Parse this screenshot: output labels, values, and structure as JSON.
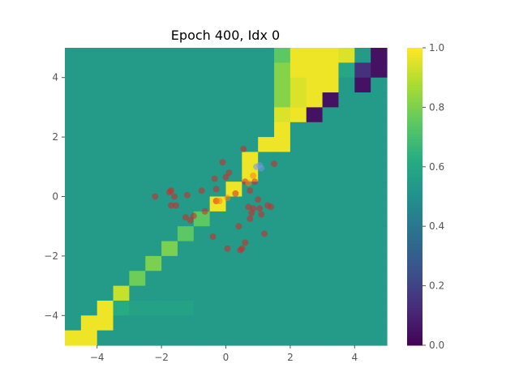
{
  "chart_data": {
    "type": "heatmap",
    "title": "Epoch 400, Idx 0",
    "xlabel": "",
    "ylabel": "",
    "xlim": [
      -5,
      5
    ],
    "ylim": [
      -5,
      5
    ],
    "grid": false,
    "x_ticks": [
      -4,
      -2,
      0,
      2,
      4
    ],
    "y_ticks": [
      -4,
      -2,
      0,
      2,
      4
    ],
    "colormap": "viridis",
    "colorbar": {
      "min": 0.0,
      "max": 1.0,
      "ticks": [
        0.0,
        0.2,
        0.4,
        0.6,
        0.8,
        1.0
      ],
      "tick_labels": [
        "0.0",
        "0.2",
        "0.4",
        "0.6",
        "0.8",
        "1.0"
      ]
    },
    "grid_size": 20,
    "grid_note_rows_top_to_bottom": "values row 0 = y in [4.5,5], row 19 = y in [-5,-4.5]; col 0 = x in [-5,-4.5]",
    "values": [
      [
        0.55,
        0.55,
        0.55,
        0.55,
        0.55,
        0.55,
        0.55,
        0.55,
        0.55,
        0.55,
        0.55,
        0.55,
        0.55,
        0.75,
        0.98,
        0.98,
        0.98,
        0.95,
        0.55,
        0.05
      ],
      [
        0.55,
        0.55,
        0.55,
        0.55,
        0.55,
        0.55,
        0.55,
        0.55,
        0.55,
        0.55,
        0.55,
        0.55,
        0.55,
        0.82,
        0.98,
        0.98,
        0.98,
        0.6,
        0.15,
        0.05
      ],
      [
        0.55,
        0.55,
        0.55,
        0.55,
        0.55,
        0.55,
        0.55,
        0.55,
        0.55,
        0.55,
        0.55,
        0.55,
        0.55,
        0.82,
        0.95,
        0.98,
        0.98,
        0.55,
        0.05,
        0.55
      ],
      [
        0.55,
        0.55,
        0.55,
        0.55,
        0.55,
        0.55,
        0.55,
        0.55,
        0.55,
        0.55,
        0.55,
        0.55,
        0.55,
        0.82,
        0.95,
        0.98,
        0.05,
        0.55,
        0.55,
        0.55
      ],
      [
        0.55,
        0.55,
        0.55,
        0.55,
        0.55,
        0.55,
        0.55,
        0.55,
        0.55,
        0.55,
        0.55,
        0.55,
        0.55,
        0.95,
        0.98,
        0.05,
        0.55,
        0.55,
        0.55,
        0.55
      ],
      [
        0.55,
        0.55,
        0.55,
        0.55,
        0.55,
        0.55,
        0.55,
        0.55,
        0.55,
        0.55,
        0.55,
        0.55,
        0.55,
        0.98,
        0.55,
        0.55,
        0.55,
        0.55,
        0.55,
        0.55
      ],
      [
        0.55,
        0.55,
        0.55,
        0.55,
        0.55,
        0.55,
        0.55,
        0.55,
        0.55,
        0.55,
        0.55,
        0.55,
        0.98,
        0.98,
        0.55,
        0.55,
        0.55,
        0.55,
        0.55,
        0.55
      ],
      [
        0.55,
        0.55,
        0.55,
        0.55,
        0.55,
        0.55,
        0.55,
        0.55,
        0.55,
        0.55,
        0.55,
        0.98,
        0.55,
        0.55,
        0.55,
        0.55,
        0.55,
        0.55,
        0.55,
        0.55
      ],
      [
        0.55,
        0.55,
        0.55,
        0.55,
        0.55,
        0.55,
        0.55,
        0.55,
        0.55,
        0.55,
        0.55,
        0.98,
        0.55,
        0.55,
        0.55,
        0.55,
        0.55,
        0.55,
        0.55,
        0.55
      ],
      [
        0.55,
        0.55,
        0.55,
        0.55,
        0.55,
        0.55,
        0.55,
        0.55,
        0.55,
        0.55,
        0.98,
        0.55,
        0.55,
        0.55,
        0.55,
        0.55,
        0.55,
        0.55,
        0.55,
        0.55
      ],
      [
        0.55,
        0.55,
        0.55,
        0.55,
        0.55,
        0.55,
        0.55,
        0.55,
        0.55,
        0.98,
        0.55,
        0.55,
        0.55,
        0.55,
        0.55,
        0.55,
        0.55,
        0.55,
        0.55,
        0.55
      ],
      [
        0.55,
        0.55,
        0.55,
        0.55,
        0.55,
        0.55,
        0.55,
        0.55,
        0.75,
        0.55,
        0.55,
        0.55,
        0.55,
        0.55,
        0.55,
        0.55,
        0.55,
        0.55,
        0.55,
        0.55
      ],
      [
        0.55,
        0.55,
        0.55,
        0.55,
        0.55,
        0.55,
        0.55,
        0.75,
        0.55,
        0.55,
        0.55,
        0.55,
        0.55,
        0.55,
        0.55,
        0.55,
        0.55,
        0.55,
        0.55,
        0.55
      ],
      [
        0.55,
        0.55,
        0.55,
        0.55,
        0.55,
        0.55,
        0.8,
        0.55,
        0.55,
        0.55,
        0.55,
        0.55,
        0.55,
        0.55,
        0.55,
        0.55,
        0.55,
        0.55,
        0.55,
        0.55
      ],
      [
        0.55,
        0.55,
        0.55,
        0.55,
        0.55,
        0.8,
        0.55,
        0.55,
        0.55,
        0.55,
        0.55,
        0.55,
        0.55,
        0.55,
        0.55,
        0.55,
        0.55,
        0.55,
        0.55,
        0.55
      ],
      [
        0.55,
        0.55,
        0.55,
        0.55,
        0.78,
        0.55,
        0.55,
        0.55,
        0.55,
        0.55,
        0.55,
        0.55,
        0.55,
        0.55,
        0.55,
        0.55,
        0.55,
        0.55,
        0.55,
        0.55
      ],
      [
        0.55,
        0.55,
        0.55,
        0.92,
        0.55,
        0.55,
        0.55,
        0.55,
        0.55,
        0.55,
        0.55,
        0.55,
        0.55,
        0.55,
        0.55,
        0.55,
        0.55,
        0.55,
        0.55,
        0.55
      ],
      [
        0.55,
        0.55,
        0.98,
        0.62,
        0.58,
        0.58,
        0.58,
        0.58,
        0.55,
        0.55,
        0.55,
        0.55,
        0.55,
        0.55,
        0.55,
        0.55,
        0.55,
        0.55,
        0.55,
        0.55
      ],
      [
        0.55,
        0.98,
        0.98,
        0.55,
        0.55,
        0.55,
        0.55,
        0.55,
        0.55,
        0.55,
        0.55,
        0.55,
        0.55,
        0.55,
        0.55,
        0.55,
        0.55,
        0.55,
        0.55,
        0.55
      ],
      [
        0.98,
        0.98,
        0.55,
        0.55,
        0.55,
        0.55,
        0.55,
        0.55,
        0.55,
        0.55,
        0.55,
        0.55,
        0.55,
        0.55,
        0.55,
        0.55,
        0.55,
        0.55,
        0.55,
        0.55
      ]
    ],
    "scatter_series": [
      {
        "color": "#d62728",
        "points": [
          [
            -2.2,
            0.0
          ],
          [
            -1.7,
            0.2
          ],
          [
            -1.75,
            0.15
          ],
          [
            -1.6,
            0.0
          ],
          [
            -1.7,
            -0.3
          ],
          [
            -1.55,
            -0.3
          ],
          [
            -1.2,
            0.05
          ],
          [
            -1.25,
            -0.7
          ],
          [
            -1.1,
            -0.8
          ],
          [
            -1.0,
            -0.65
          ],
          [
            -0.75,
            0.2
          ],
          [
            -0.65,
            -0.5
          ],
          [
            -0.4,
            -1.35
          ],
          [
            -0.35,
            0.6
          ],
          [
            -0.3,
            0.25
          ],
          [
            -0.3,
            -0.15
          ],
          [
            -0.1,
            1.15
          ],
          [
            0.0,
            0.65
          ],
          [
            0.05,
            -1.75
          ],
          [
            0.1,
            0.8
          ],
          [
            0.3,
            0.1
          ],
          [
            0.4,
            -1.0
          ],
          [
            0.45,
            -1.8
          ],
          [
            0.5,
            -1.75
          ],
          [
            0.55,
            1.6
          ],
          [
            0.6,
            0.5
          ],
          [
            0.7,
            -0.35
          ],
          [
            0.75,
            0.2
          ],
          [
            0.75,
            -0.75
          ],
          [
            0.8,
            -0.55
          ],
          [
            0.85,
            -0.4
          ],
          [
            0.9,
            0.5
          ],
          [
            1.0,
            -0.1
          ],
          [
            1.05,
            -0.4
          ],
          [
            1.1,
            -0.6
          ],
          [
            1.2,
            -1.25
          ],
          [
            1.3,
            -0.3
          ],
          [
            1.4,
            -0.35
          ],
          [
            1.5,
            1.1
          ],
          [
            0.6,
            -1.55
          ]
        ]
      },
      {
        "color": "#ff7f0e",
        "points": [
          [
            -0.2,
            -0.15
          ],
          [
            0.05,
            -0.05
          ],
          [
            0.7,
            0.45
          ],
          [
            0.85,
            0.7
          ]
        ]
      },
      {
        "color": "#6f9be8",
        "points": [
          [
            0.95,
            1.0
          ],
          [
            1.05,
            1.05
          ],
          [
            1.1,
            0.95
          ]
        ]
      }
    ]
  }
}
